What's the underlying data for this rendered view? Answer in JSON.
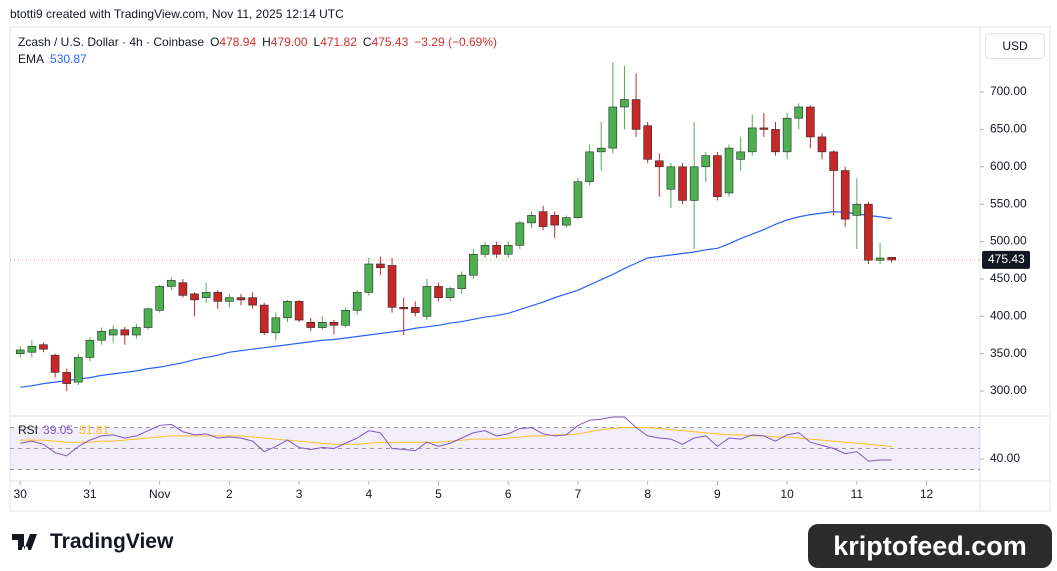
{
  "header": {
    "attribution": "btotti9 created with TradingView.com, Nov 11, 2025 12:14 UTC",
    "symbol": "Zcash / U.S. Dollar · 4h · Coinbase",
    "ohlc": [
      [
        "O",
        "478.94"
      ],
      [
        "H",
        "479.00"
      ],
      [
        "L",
        "471.82"
      ],
      [
        "C",
        "475.43"
      ]
    ],
    "change": "−3.29 (−0.69%)",
    "currency": "USD",
    "logo": "TradingView",
    "watermark": "kriptofeed.com"
  },
  "chart_data": [
    {
      "type": "candlestick",
      "x": [
        0,
        1,
        2,
        3,
        4,
        5,
        6,
        7,
        8,
        9,
        10,
        11,
        12,
        13,
        14,
        15,
        16,
        17,
        18,
        19,
        20,
        21,
        22,
        23,
        24,
        25,
        26,
        27,
        28,
        29,
        30,
        31,
        32,
        33,
        34,
        35,
        36,
        37,
        38,
        39,
        40,
        41,
        42,
        43,
        44,
        45,
        46,
        47,
        48,
        49,
        50,
        51,
        52,
        53,
        54,
        55,
        56,
        57,
        58,
        59,
        60,
        61,
        62,
        63,
        64,
        65,
        66,
        67,
        68,
        69,
        70,
        71,
        72,
        73,
        74,
        75
      ],
      "open": [
        350,
        352,
        362,
        348,
        325,
        312,
        345,
        368,
        375,
        382,
        375,
        385,
        408,
        440,
        445,
        430,
        425,
        432,
        420,
        425,
        425,
        415,
        378,
        398,
        420,
        392,
        385,
        392,
        388,
        408,
        432,
        470,
        468,
        412,
        412,
        400,
        440,
        425,
        437,
        455,
        483,
        495,
        483,
        495,
        525,
        540,
        535,
        522,
        532,
        580,
        620,
        625,
        680,
        690,
        655,
        608,
        570,
        600,
        555,
        600,
        615,
        565,
        610,
        620,
        652,
        650,
        620,
        665,
        680,
        640,
        620,
        595,
        535,
        550,
        475,
        478.94
      ],
      "high": [
        360,
        368,
        365,
        350,
        330,
        350,
        372,
        385,
        388,
        386,
        390,
        412,
        442,
        452,
        450,
        432,
        445,
        435,
        430,
        430,
        432,
        418,
        405,
        422,
        422,
        398,
        400,
        395,
        412,
        435,
        478,
        480,
        478,
        425,
        420,
        450,
        445,
        440,
        460,
        490,
        500,
        500,
        500,
        528,
        540,
        548,
        540,
        535,
        585,
        630,
        660,
        740,
        735,
        725,
        660,
        618,
        605,
        605,
        660,
        620,
        620,
        630,
        640,
        670,
        672,
        660,
        672,
        685,
        682,
        645,
        622,
        600,
        585,
        553,
        498,
        479
      ],
      "low": [
        345,
        345,
        352,
        318,
        300,
        308,
        340,
        362,
        365,
        362,
        370,
        382,
        405,
        435,
        425,
        400,
        418,
        410,
        412,
        415,
        410,
        375,
        368,
        392,
        392,
        380,
        382,
        376,
        385,
        402,
        428,
        455,
        405,
        375,
        400,
        395,
        420,
        420,
        430,
        450,
        478,
        478,
        478,
        490,
        518,
        515,
        505,
        518,
        530,
        575,
        595,
        618,
        650,
        640,
        605,
        560,
        545,
        550,
        490,
        580,
        555,
        560,
        595,
        615,
        640,
        615,
        610,
        650,
        625,
        610,
        535,
        520,
        490,
        470,
        470,
        471.82
      ],
      "close": [
        355,
        360,
        356,
        325,
        310,
        345,
        368,
        380,
        382,
        375,
        385,
        410,
        440,
        448,
        428,
        422,
        432,
        420,
        425,
        422,
        415,
        378,
        398,
        420,
        395,
        385,
        392,
        388,
        408,
        432,
        470,
        465,
        412,
        410,
        405,
        440,
        425,
        437,
        455,
        483,
        495,
        483,
        495,
        525,
        535,
        520,
        522,
        532,
        580,
        620,
        625,
        680,
        690,
        650,
        610,
        600,
        600,
        555,
        600,
        615,
        560,
        625,
        620,
        652,
        650,
        620,
        665,
        680,
        640,
        620,
        595,
        530,
        550,
        475,
        478,
        475.43
      ],
      "up_color": "#4caf50",
      "down_color": "#c62828",
      "series": [
        {
          "name": "EMA",
          "color": "#2962ff",
          "values": [
            305,
            307,
            310,
            312,
            314,
            316,
            318,
            321,
            323,
            325,
            327,
            330,
            332,
            335,
            338,
            342,
            345,
            348,
            352,
            354,
            356,
            358,
            360,
            362,
            364,
            366,
            368,
            369,
            371,
            373,
            375,
            377,
            379,
            381,
            384,
            386,
            388,
            391,
            393,
            396,
            399,
            401,
            404,
            409,
            414,
            419,
            425,
            430,
            435,
            442,
            449,
            456,
            464,
            471,
            478,
            480,
            482,
            484,
            486,
            489,
            491,
            497,
            504,
            510,
            516,
            523,
            529,
            533,
            536,
            538,
            540,
            539,
            537,
            535,
            533,
            530.87
          ]
        }
      ],
      "xlim": [
        -0.88,
        82.6
      ],
      "ylim": [
        268,
        787
      ],
      "xticks": [
        {
          "value": 0,
          "label": "30"
        },
        {
          "value": 6,
          "label": "31"
        },
        {
          "value": 12,
          "label": "Nov"
        },
        {
          "value": 18,
          "label": "2"
        },
        {
          "value": 24,
          "label": "3"
        },
        {
          "value": 30,
          "label": "4"
        },
        {
          "value": 36,
          "label": "5"
        },
        {
          "value": 42,
          "label": "6"
        },
        {
          "value": 48,
          "label": "7"
        },
        {
          "value": 54,
          "label": "8"
        },
        {
          "value": 60,
          "label": "9"
        },
        {
          "value": 66,
          "label": "10"
        },
        {
          "value": 72,
          "label": "11"
        },
        {
          "value": 78,
          "label": "12"
        }
      ],
      "yticks": [
        {
          "value": 300,
          "label": "300.00"
        },
        {
          "value": 350,
          "label": "350.00"
        },
        {
          "value": 400,
          "label": "400.00"
        },
        {
          "value": 450,
          "label": "450.00"
        },
        {
          "value": 500,
          "label": "500.00"
        },
        {
          "value": 550,
          "label": "550.00"
        },
        {
          "value": 600,
          "label": "600.00"
        },
        {
          "value": 650,
          "label": "650.00"
        },
        {
          "value": 700,
          "label": "700.00"
        }
      ]
    },
    {
      "type": "line",
      "title": "RSI",
      "series": [
        {
          "color": "#7e57c2",
          "values": [
            55,
            57,
            54,
            46,
            43,
            52,
            58,
            62,
            63,
            60,
            62,
            67,
            72,
            73,
            66,
            63,
            64,
            60,
            61,
            60,
            57,
            47,
            52,
            58,
            51,
            49,
            51,
            50,
            55,
            60,
            67,
            65,
            50,
            49,
            48,
            56,
            52,
            55,
            60,
            65,
            67,
            62,
            64,
            69,
            70,
            64,
            62,
            63,
            72,
            77,
            78,
            80,
            80,
            70,
            62,
            60,
            59,
            54,
            60,
            62,
            52,
            60,
            59,
            63,
            62,
            57,
            63,
            65,
            56,
            53,
            50,
            45,
            47,
            38,
            39,
            39.05
          ]
        },
        {
          "color": "#fbc02d",
          "values": [
            58,
            58,
            58,
            57,
            56,
            56,
            56,
            57,
            57,
            58,
            59,
            60,
            61,
            62,
            62,
            62,
            62,
            62,
            62,
            62,
            61,
            60,
            59,
            58,
            57,
            56,
            55,
            54,
            54,
            54,
            55,
            56,
            56,
            56,
            56,
            56,
            56,
            57,
            58,
            59,
            59,
            59,
            60,
            61,
            62,
            62,
            63,
            63,
            64,
            66,
            68,
            69,
            70,
            70,
            70,
            69,
            68,
            67,
            66,
            65,
            64,
            63,
            63,
            62,
            62,
            61,
            61,
            60,
            59,
            58,
            57,
            56,
            55,
            54,
            53,
            51.81
          ]
        }
      ],
      "bands": [
        70,
        50,
        30
      ],
      "ylim": [
        19,
        81
      ],
      "yticks": [
        {
          "value": 40,
          "label": "40.00"
        }
      ]
    }
  ]
}
